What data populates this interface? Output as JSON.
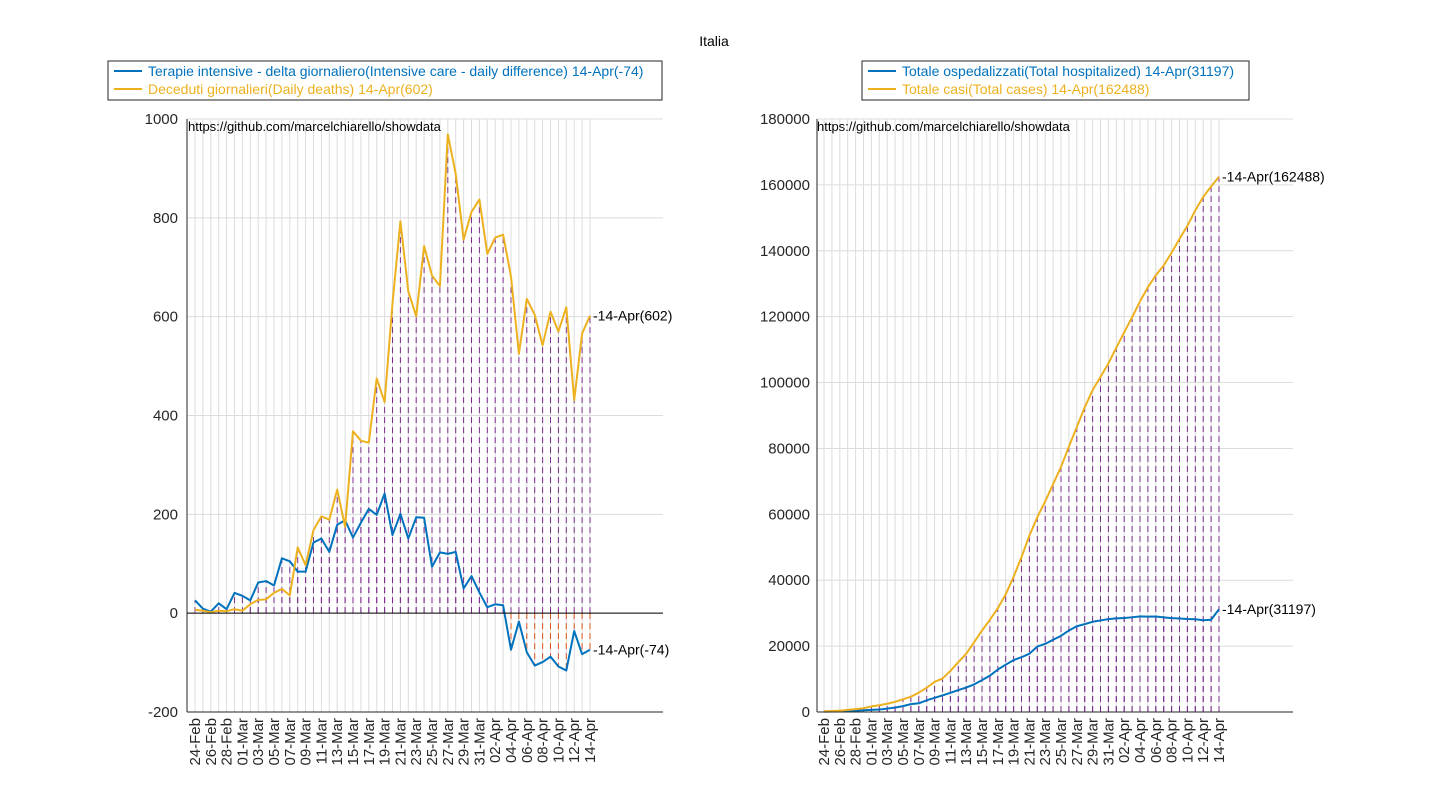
{
  "figure_title": "Italia",
  "colors": {
    "blue": "#0072BD",
    "orange": "#EDB120",
    "purple": "#7E2F8E",
    "red": "#D95319",
    "grid": "#dcdcdc",
    "axis": "#262626"
  },
  "chart_data": [
    {
      "type": "line",
      "annotation": "https://github.com/marcelchiarello/showdata",
      "ylim": [
        -200,
        1000
      ],
      "yticks": [
        -200,
        0,
        200,
        400,
        600,
        800,
        1000
      ],
      "grid": true,
      "legend_placement": "top",
      "categories": [
        "24-Feb",
        "25-Feb",
        "26-Feb",
        "27-Feb",
        "28-Feb",
        "29-Feb",
        "01-Mar",
        "02-Mar",
        "03-Mar",
        "04-Mar",
        "05-Mar",
        "06-Mar",
        "07-Mar",
        "08-Mar",
        "09-Mar",
        "10-Mar",
        "11-Mar",
        "12-Mar",
        "13-Mar",
        "14-Mar",
        "15-Mar",
        "16-Mar",
        "17-Mar",
        "18-Mar",
        "19-Mar",
        "20-Mar",
        "21-Mar",
        "22-Mar",
        "23-Mar",
        "24-Mar",
        "25-Mar",
        "26-Mar",
        "27-Mar",
        "28-Mar",
        "29-Mar",
        "30-Mar",
        "31-Mar",
        "01-Apr",
        "02-Apr",
        "03-Apr",
        "04-Apr",
        "05-Apr",
        "06-Apr",
        "07-Apr",
        "08-Apr",
        "09-Apr",
        "10-Apr",
        "11-Apr",
        "12-Apr",
        "13-Apr",
        "14-Apr"
      ],
      "xticklabels": [
        "24-Feb",
        "26-Feb",
        "28-Feb",
        "01-Mar",
        "03-Mar",
        "05-Mar",
        "07-Mar",
        "09-Mar",
        "11-Mar",
        "13-Mar",
        "15-Mar",
        "17-Mar",
        "19-Mar",
        "21-Mar",
        "23-Mar",
        "25-Mar",
        "27-Mar",
        "29-Mar",
        "31-Mar",
        "02-Apr",
        "04-Apr",
        "06-Apr",
        "08-Apr",
        "10-Apr",
        "12-Apr",
        "14-Apr"
      ],
      "series": [
        {
          "name": "Terapie intensive - delta giornaliero(Intensive care - daily difference) 14-Apr(-74)",
          "color": "#0072BD",
          "end_label": "14-Apr(-74)",
          "values": [
            26,
            9,
            3,
            20,
            8,
            41,
            35,
            26,
            62,
            65,
            56,
            111,
            105,
            84,
            84,
            143,
            151,
            124,
            179,
            188,
            153,
            183,
            211,
            199,
            242,
            158,
            201,
            151,
            194,
            193,
            94,
            123,
            120,
            124,
            50,
            75,
            42,
            12,
            18,
            16,
            -74,
            -17,
            -79,
            -106,
            -99,
            -88,
            -108,
            -116,
            -36,
            -83,
            -74
          ]
        },
        {
          "name": "Deceduti giornalieri(Daily deaths) 14-Apr(602)",
          "color": "#EDB120",
          "end_label": "14-Apr(602)",
          "values": [
            7,
            5,
            2,
            5,
            4,
            8,
            5,
            18,
            27,
            28,
            41,
            49,
            36,
            133,
            97,
            168,
            196,
            189,
            250,
            175,
            368,
            349,
            345,
            475,
            427,
            627,
            793,
            651,
            601,
            743,
            683,
            662,
            969,
            889,
            756,
            812,
            837,
            727,
            760,
            766,
            681,
            525,
            636,
            604,
            542,
            610,
            570,
            619,
            431,
            566,
            602
          ]
        }
      ]
    },
    {
      "type": "line",
      "annotation": "https://github.com/marcelchiarello/showdata",
      "ylim": [
        0,
        180000
      ],
      "yticks": [
        0,
        20000,
        40000,
        60000,
        80000,
        100000,
        120000,
        140000,
        160000,
        180000
      ],
      "grid": true,
      "legend_placement": "top",
      "categories": [
        "24-Feb",
        "25-Feb",
        "26-Feb",
        "27-Feb",
        "28-Feb",
        "29-Feb",
        "01-Mar",
        "02-Mar",
        "03-Mar",
        "04-Mar",
        "05-Mar",
        "06-Mar",
        "07-Mar",
        "08-Mar",
        "09-Mar",
        "10-Mar",
        "11-Mar",
        "12-Mar",
        "13-Mar",
        "14-Mar",
        "15-Mar",
        "16-Mar",
        "17-Mar",
        "18-Mar",
        "19-Mar",
        "20-Mar",
        "21-Mar",
        "22-Mar",
        "23-Mar",
        "24-Mar",
        "25-Mar",
        "26-Mar",
        "27-Mar",
        "28-Mar",
        "29-Mar",
        "30-Mar",
        "31-Mar",
        "01-Apr",
        "02-Apr",
        "03-Apr",
        "04-Apr",
        "05-Apr",
        "06-Apr",
        "07-Apr",
        "08-Apr",
        "09-Apr",
        "10-Apr",
        "11-Apr",
        "12-Apr",
        "13-Apr",
        "14-Apr"
      ],
      "xticklabels": [
        "24-Feb",
        "26-Feb",
        "28-Feb",
        "01-Mar",
        "03-Mar",
        "05-Mar",
        "07-Mar",
        "09-Mar",
        "11-Mar",
        "13-Mar",
        "15-Mar",
        "17-Mar",
        "19-Mar",
        "21-Mar",
        "23-Mar",
        "25-Mar",
        "27-Mar",
        "29-Mar",
        "31-Mar",
        "02-Apr",
        "04-Apr",
        "06-Apr",
        "08-Apr",
        "10-Apr",
        "12-Apr",
        "14-Apr"
      ],
      "series": [
        {
          "name": "Totale ospedalizzati(Total hospitalized) 14-Apr(31197)",
          "color": "#0072BD",
          "end_label": "14-Apr(31197)",
          "values": [
            127,
            150,
            164,
            304,
            409,
            534,
            639,
            742,
            1034,
            1346,
            1790,
            2394,
            2651,
            3557,
            4316,
            5038,
            5838,
            6650,
            7426,
            8372,
            9663,
            11025,
            12894,
            14363,
            15757,
            16620,
            17708,
            19846,
            20692,
            21937,
            23112,
            24753,
            26029,
            26676,
            27386,
            27795,
            28192,
            28403,
            28540,
            28741,
            29010,
            28949,
            28976,
            28718,
            28485,
            28399,
            28242,
            28144,
            27847,
            28011,
            31197
          ]
        },
        {
          "name": "Totale casi(Total cases) 14-Apr(162488)",
          "color": "#EDB120",
          "end_label": "14-Apr(162488)",
          "values": [
            229,
            322,
            400,
            650,
            888,
            1128,
            1694,
            2036,
            2502,
            3089,
            3858,
            4636,
            5883,
            7375,
            9172,
            10149,
            12462,
            15113,
            17660,
            21157,
            24747,
            27980,
            31506,
            35713,
            41035,
            47021,
            53578,
            59138,
            63927,
            69176,
            74386,
            80539,
            86498,
            92472,
            97689,
            101739,
            105792,
            110574,
            115242,
            119827,
            124632,
            128948,
            132547,
            135586,
            139422,
            143626,
            147577,
            152271,
            156363,
            159516,
            162488
          ]
        }
      ]
    }
  ]
}
